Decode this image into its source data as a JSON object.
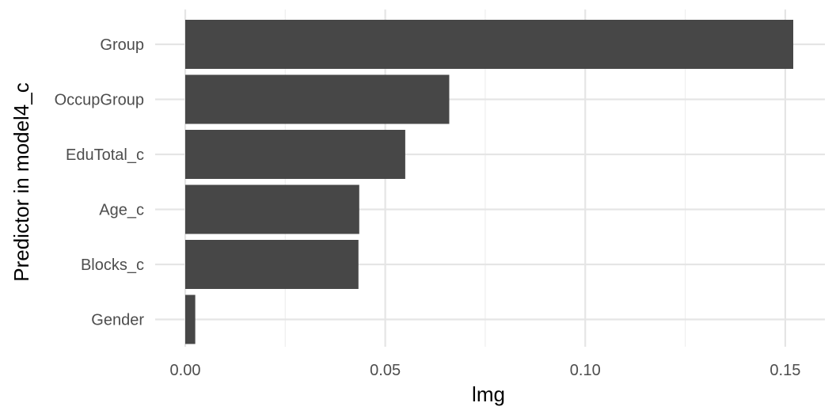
{
  "chart_data": {
    "type": "bar",
    "orientation": "horizontal",
    "categories": [
      "Group",
      "OccupGroup",
      "EduTotal_c",
      "Age_c",
      "Blocks_c",
      "Gender"
    ],
    "values": [
      0.152,
      0.066,
      0.055,
      0.0435,
      0.0433,
      0.0025
    ],
    "xlabel": "lmg",
    "ylabel": "Predictor in model4_c",
    "xlim": [
      0,
      0.152
    ],
    "xticks": [
      0,
      0.05,
      0.1,
      0.15
    ],
    "xtick_labels": [
      "0.00",
      "0.05",
      "0.10",
      "0.15"
    ],
    "grid": true,
    "bar_color": "#474747",
    "gridline_color": "#e5e5e5"
  }
}
